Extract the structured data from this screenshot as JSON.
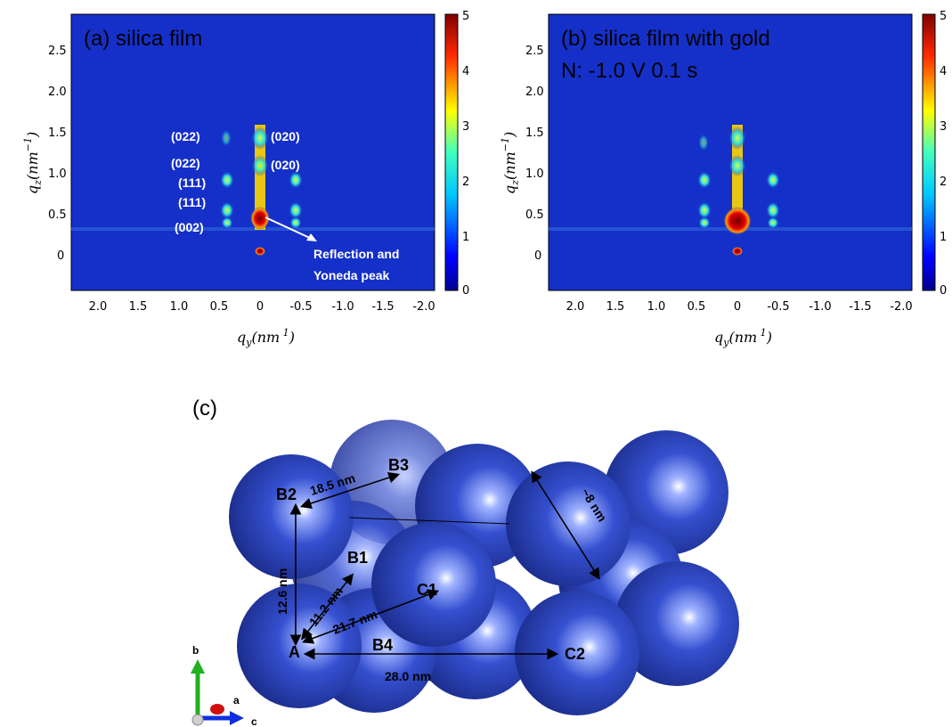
{
  "panel_a": {
    "title": "(a) silica film",
    "yticks": [
      "2.5",
      "2.0",
      "1.5",
      "1.0",
      "0.5",
      "0"
    ],
    "xticks": [
      "2.0",
      "1.5",
      "1.0",
      "0.5",
      "0",
      "-0.5",
      "-1.0",
      "-1.5",
      "-2.0"
    ],
    "ylabel": "q_z (nm^-1)",
    "xlabel": "q_y (nm^-1)",
    "cbar_ticks": [
      "5",
      "4",
      "3",
      "2",
      "1",
      "0"
    ],
    "indices": [
      "(022)",
      "(020)",
      "(022)",
      "(020)",
      "(111)",
      "(111)",
      "(002)"
    ],
    "annotation_line1": "Reflection and",
    "annotation_line2": "Yoneda peak"
  },
  "panel_b": {
    "title_line1": "(b) silica film with gold",
    "title_line2": "N: -1.0 V 0.1 s",
    "yticks": [
      "2.5",
      "2.0",
      "1.5",
      "1.0",
      "0.5",
      "0"
    ],
    "xticks": [
      "2.0",
      "1.5",
      "1.0",
      "0.5",
      "0",
      "-0.5",
      "-1.0",
      "-1.5",
      "-2.0"
    ],
    "cbar_ticks": [
      "5",
      "4",
      "3",
      "2",
      "1",
      "0"
    ]
  },
  "panel_c": {
    "label": "(c)",
    "points": {
      "A": "A",
      "B1": "B1",
      "B2": "B2",
      "B3": "B3",
      "B4": "B4",
      "C1": "C1",
      "C2": "C2"
    },
    "distances": {
      "a_b2": "12.6 nm",
      "a_b1": "11.2 nm",
      "a_c1": "21.7 nm",
      "b2_b3": "18.5 nm",
      "a_c2": "28.0 nm",
      "diameter": "~8 nm"
    },
    "axes": {
      "b": "b",
      "a": "a",
      "c": "c"
    }
  },
  "colors": {
    "map_bg": "#1530c8",
    "sphere": "#2c46c0",
    "arrow": "#000000"
  }
}
